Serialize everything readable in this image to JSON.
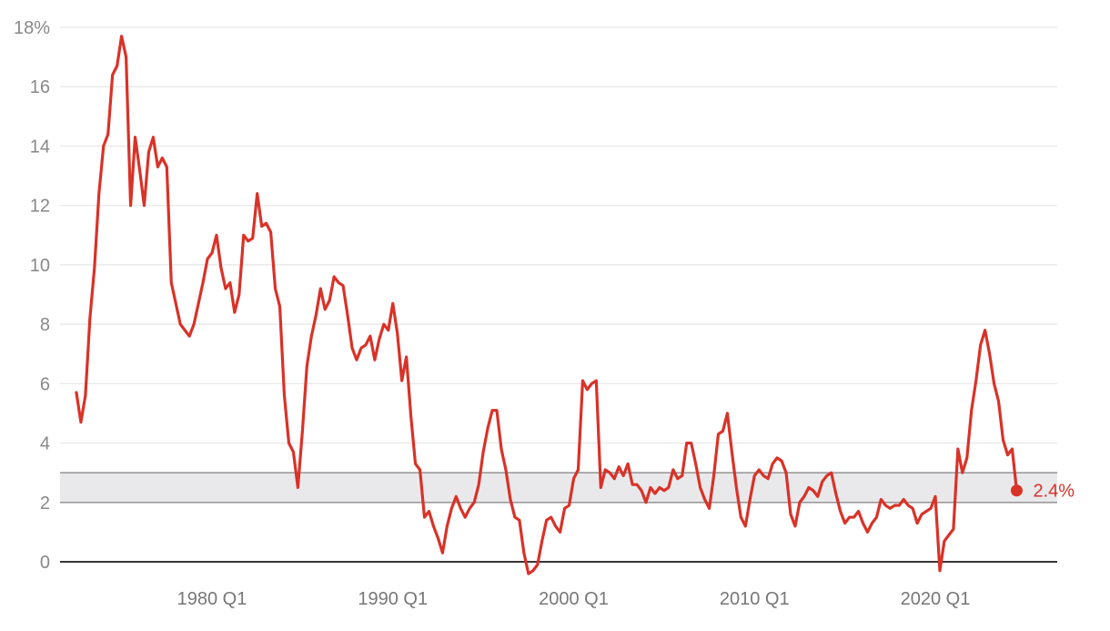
{
  "chart_data": {
    "type": "line",
    "title": "",
    "xlabel": "",
    "ylabel": "",
    "x_start": "1972 Q3",
    "x_end": "2024 Q3",
    "ylim": [
      -0.4,
      18.3
    ],
    "y_ticks": [
      {
        "value": 0,
        "label": "0"
      },
      {
        "value": 2,
        "label": "2"
      },
      {
        "value": 4,
        "label": "4"
      },
      {
        "value": 6,
        "label": "6"
      },
      {
        "value": 8,
        "label": "8"
      },
      {
        "value": 10,
        "label": "10"
      },
      {
        "value": 12,
        "label": "12"
      },
      {
        "value": 14,
        "label": "14"
      },
      {
        "value": 16,
        "label": "16"
      },
      {
        "value": 18,
        "label": "18%"
      }
    ],
    "x_ticks": [
      {
        "value": 1980.0,
        "label": "1980 Q1"
      },
      {
        "value": 1990.0,
        "label": "1990 Q1"
      },
      {
        "value": 2000.0,
        "label": "2000 Q1"
      },
      {
        "value": 2010.0,
        "label": "2010 Q1"
      },
      {
        "value": 2020.0,
        "label": "2020 Q1"
      }
    ],
    "grid": true,
    "target_band": {
      "from": 2,
      "to": 3
    },
    "color": "#d93228",
    "band_color": "#e9e9eb",
    "end_label": "2.4%",
    "series": [
      {
        "values": [
          [
            "1972 Q3",
            5.7
          ],
          [
            "1972 Q4",
            4.7
          ],
          [
            "1973 Q1",
            5.6
          ],
          [
            "1973 Q2",
            8.2
          ],
          [
            "1973 Q3",
            9.9
          ],
          [
            "1973 Q4",
            12.4
          ],
          [
            "1974 Q1",
            14.0
          ],
          [
            "1974 Q2",
            14.4
          ],
          [
            "1974 Q3",
            16.4
          ],
          [
            "1974 Q4",
            16.7
          ],
          [
            "1975 Q1",
            17.7
          ],
          [
            "1975 Q2",
            17.0
          ],
          [
            "1975 Q3",
            12.0
          ],
          [
            "1975 Q4",
            14.3
          ],
          [
            "1976 Q1",
            13.2
          ],
          [
            "1976 Q2",
            12.0
          ],
          [
            "1976 Q3",
            13.8
          ],
          [
            "1976 Q4",
            14.3
          ],
          [
            "1977 Q1",
            13.3
          ],
          [
            "1977 Q2",
            13.6
          ],
          [
            "1977 Q3",
            13.3
          ],
          [
            "1977 Q4",
            9.4
          ],
          [
            "1978 Q1",
            8.7
          ],
          [
            "1978 Q2",
            8.0
          ],
          [
            "1978 Q3",
            7.8
          ],
          [
            "1978 Q4",
            7.6
          ],
          [
            "1979 Q1",
            8.0
          ],
          [
            "1979 Q2",
            8.7
          ],
          [
            "1979 Q3",
            9.4
          ],
          [
            "1979 Q4",
            10.2
          ],
          [
            "1980 Q1",
            10.4
          ],
          [
            "1980 Q2",
            11.0
          ],
          [
            "1980 Q3",
            9.9
          ],
          [
            "1980 Q4",
            9.2
          ],
          [
            "1981 Q1",
            9.4
          ],
          [
            "1981 Q2",
            8.4
          ],
          [
            "1981 Q3",
            9.0
          ],
          [
            "1981 Q4",
            11.0
          ],
          [
            "1982 Q1",
            10.8
          ],
          [
            "1982 Q2",
            10.9
          ],
          [
            "1982 Q3",
            12.4
          ],
          [
            "1982 Q4",
            11.3
          ],
          [
            "1983 Q1",
            11.4
          ],
          [
            "1983 Q2",
            11.1
          ],
          [
            "1983 Q3",
            9.2
          ],
          [
            "1983 Q4",
            8.6
          ],
          [
            "1984 Q1",
            5.6
          ],
          [
            "1984 Q2",
            4.0
          ],
          [
            "1984 Q3",
            3.7
          ],
          [
            "1984 Q4",
            2.5
          ],
          [
            "1985 Q1",
            4.4
          ],
          [
            "1985 Q2",
            6.6
          ],
          [
            "1985 Q3",
            7.6
          ],
          [
            "1985 Q4",
            8.3
          ],
          [
            "1986 Q1",
            9.2
          ],
          [
            "1986 Q2",
            8.5
          ],
          [
            "1986 Q3",
            8.8
          ],
          [
            "1986 Q4",
            9.6
          ],
          [
            "1987 Q1",
            9.4
          ],
          [
            "1987 Q2",
            9.3
          ],
          [
            "1987 Q3",
            8.3
          ],
          [
            "1987 Q4",
            7.2
          ],
          [
            "1988 Q1",
            6.8
          ],
          [
            "1988 Q2",
            7.2
          ],
          [
            "1988 Q3",
            7.3
          ],
          [
            "1988 Q4",
            7.6
          ],
          [
            "1989 Q1",
            6.8
          ],
          [
            "1989 Q2",
            7.5
          ],
          [
            "1989 Q3",
            8.0
          ],
          [
            "1989 Q4",
            7.8
          ],
          [
            "1990 Q1",
            8.7
          ],
          [
            "1990 Q2",
            7.7
          ],
          [
            "1990 Q3",
            6.1
          ],
          [
            "1990 Q4",
            6.9
          ],
          [
            "1991 Q1",
            4.9
          ],
          [
            "1991 Q2",
            3.3
          ],
          [
            "1991 Q3",
            3.1
          ],
          [
            "1991 Q4",
            1.5
          ],
          [
            "1992 Q1",
            1.7
          ],
          [
            "1992 Q2",
            1.2
          ],
          [
            "1992 Q3",
            0.8
          ],
          [
            "1992 Q4",
            0.3
          ],
          [
            "1993 Q1",
            1.2
          ],
          [
            "1993 Q2",
            1.8
          ],
          [
            "1993 Q3",
            2.2
          ],
          [
            "1993 Q4",
            1.8
          ],
          [
            "1994 Q1",
            1.5
          ],
          [
            "1994 Q2",
            1.8
          ],
          [
            "1994 Q3",
            2.0
          ],
          [
            "1994 Q4",
            2.6
          ],
          [
            "1995 Q1",
            3.7
          ],
          [
            "1995 Q2",
            4.5
          ],
          [
            "1995 Q3",
            5.1
          ],
          [
            "1995 Q4",
            5.1
          ],
          [
            "1996 Q1",
            3.8
          ],
          [
            "1996 Q2",
            3.1
          ],
          [
            "1996 Q3",
            2.1
          ],
          [
            "1996 Q4",
            1.5
          ],
          [
            "1997 Q1",
            1.4
          ],
          [
            "1997 Q2",
            0.3
          ],
          [
            "1997 Q3",
            -0.4
          ],
          [
            "1997 Q4",
            -0.3
          ],
          [
            "1998 Q1",
            -0.1
          ],
          [
            "1998 Q2",
            0.7
          ],
          [
            "1998 Q3",
            1.4
          ],
          [
            "1998 Q4",
            1.5
          ],
          [
            "1999 Q1",
            1.2
          ],
          [
            "1999 Q2",
            1.0
          ],
          [
            "1999 Q3",
            1.8
          ],
          [
            "1999 Q4",
            1.9
          ],
          [
            "2000 Q1",
            2.8
          ],
          [
            "2000 Q2",
            3.1
          ],
          [
            "2000 Q3",
            6.1
          ],
          [
            "2000 Q4",
            5.8
          ],
          [
            "2001 Q1",
            6.0
          ],
          [
            "2001 Q2",
            6.1
          ],
          [
            "2001 Q3",
            2.5
          ],
          [
            "2001 Q4",
            3.1
          ],
          [
            "2002 Q1",
            3.0
          ],
          [
            "2002 Q2",
            2.8
          ],
          [
            "2002 Q3",
            3.2
          ],
          [
            "2002 Q4",
            2.9
          ],
          [
            "2003 Q1",
            3.3
          ],
          [
            "2003 Q2",
            2.6
          ],
          [
            "2003 Q3",
            2.6
          ],
          [
            "2003 Q4",
            2.4
          ],
          [
            "2004 Q1",
            2.0
          ],
          [
            "2004 Q2",
            2.5
          ],
          [
            "2004 Q3",
            2.3
          ],
          [
            "2004 Q4",
            2.5
          ],
          [
            "2005 Q1",
            2.4
          ],
          [
            "2005 Q2",
            2.5
          ],
          [
            "2005 Q3",
            3.1
          ],
          [
            "2005 Q4",
            2.8
          ],
          [
            "2006 Q1",
            2.9
          ],
          [
            "2006 Q2",
            4.0
          ],
          [
            "2006 Q3",
            4.0
          ],
          [
            "2006 Q4",
            3.3
          ],
          [
            "2007 Q1",
            2.5
          ],
          [
            "2007 Q2",
            2.1
          ],
          [
            "2007 Q3",
            1.8
          ],
          [
            "2007 Q4",
            2.9
          ],
          [
            "2008 Q1",
            4.3
          ],
          [
            "2008 Q2",
            4.4
          ],
          [
            "2008 Q3",
            5.0
          ],
          [
            "2008 Q4",
            3.7
          ],
          [
            "2009 Q1",
            2.5
          ],
          [
            "2009 Q2",
            1.5
          ],
          [
            "2009 Q3",
            1.2
          ],
          [
            "2009 Q4",
            2.1
          ],
          [
            "2010 Q1",
            2.9
          ],
          [
            "2010 Q2",
            3.1
          ],
          [
            "2010 Q3",
            2.9
          ],
          [
            "2010 Q4",
            2.8
          ],
          [
            "2011 Q1",
            3.3
          ],
          [
            "2011 Q2",
            3.5
          ],
          [
            "2011 Q3",
            3.4
          ],
          [
            "2011 Q4",
            3.0
          ],
          [
            "2012 Q1",
            1.6
          ],
          [
            "2012 Q2",
            1.2
          ],
          [
            "2012 Q3",
            2.0
          ],
          [
            "2012 Q4",
            2.2
          ],
          [
            "2013 Q1",
            2.5
          ],
          [
            "2013 Q2",
            2.4
          ],
          [
            "2013 Q3",
            2.2
          ],
          [
            "2013 Q4",
            2.7
          ],
          [
            "2014 Q1",
            2.9
          ],
          [
            "2014 Q2",
            3.0
          ],
          [
            "2014 Q3",
            2.3
          ],
          [
            "2014 Q4",
            1.7
          ],
          [
            "2015 Q1",
            1.3
          ],
          [
            "2015 Q2",
            1.5
          ],
          [
            "2015 Q3",
            1.5
          ],
          [
            "2015 Q4",
            1.7
          ],
          [
            "2016 Q1",
            1.3
          ],
          [
            "2016 Q2",
            1.0
          ],
          [
            "2016 Q3",
            1.3
          ],
          [
            "2016 Q4",
            1.5
          ],
          [
            "2017 Q1",
            2.1
          ],
          [
            "2017 Q2",
            1.9
          ],
          [
            "2017 Q3",
            1.8
          ],
          [
            "2017 Q4",
            1.9
          ],
          [
            "2018 Q1",
            1.9
          ],
          [
            "2018 Q2",
            2.1
          ],
          [
            "2018 Q3",
            1.9
          ],
          [
            "2018 Q4",
            1.8
          ],
          [
            "2019 Q1",
            1.3
          ],
          [
            "2019 Q2",
            1.6
          ],
          [
            "2019 Q3",
            1.7
          ],
          [
            "2019 Q4",
            1.8
          ],
          [
            "2020 Q1",
            2.2
          ],
          [
            "2020 Q2",
            -0.3
          ],
          [
            "2020 Q3",
            0.7
          ],
          [
            "2020 Q4",
            0.9
          ],
          [
            "2021 Q1",
            1.1
          ],
          [
            "2021 Q2",
            3.8
          ],
          [
            "2021 Q3",
            3.0
          ],
          [
            "2021 Q4",
            3.5
          ],
          [
            "2022 Q1",
            5.1
          ],
          [
            "2022 Q2",
            6.1
          ],
          [
            "2022 Q3",
            7.3
          ],
          [
            "2022 Q4",
            7.8
          ],
          [
            "2023 Q1",
            7.0
          ],
          [
            "2023 Q2",
            6.0
          ],
          [
            "2023 Q3",
            5.4
          ],
          [
            "2023 Q4",
            4.1
          ],
          [
            "2024 Q1",
            3.6
          ],
          [
            "2024 Q2",
            3.8
          ],
          [
            "2024 Q3",
            2.4
          ]
        ]
      }
    ]
  }
}
